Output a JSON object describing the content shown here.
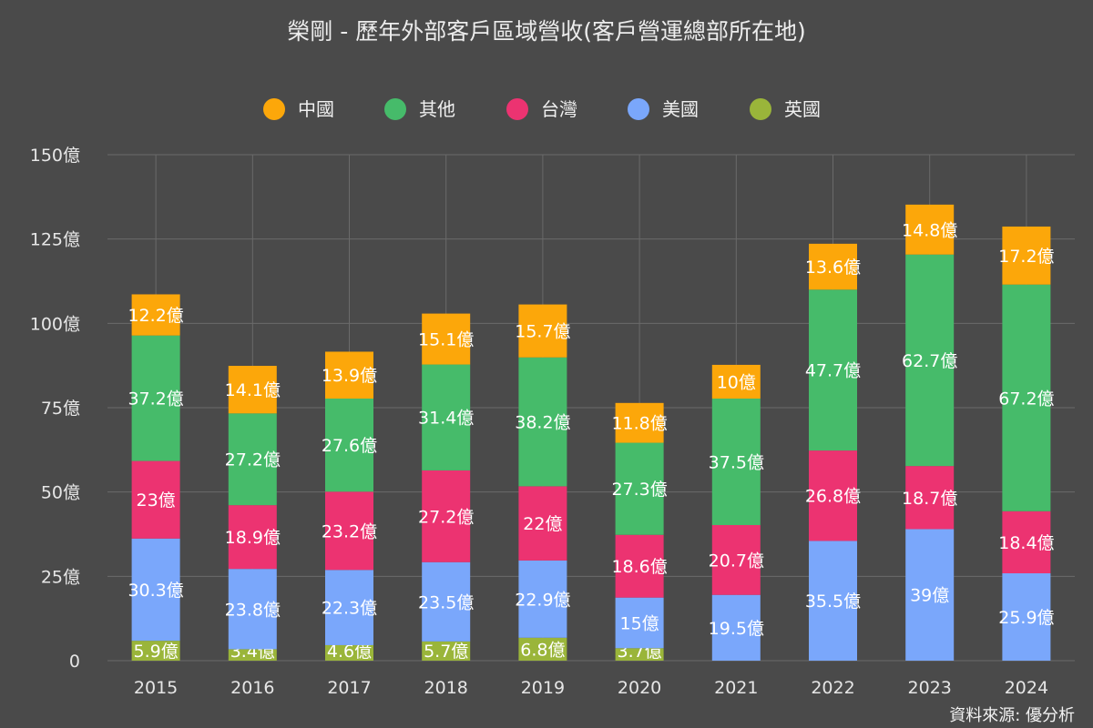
{
  "chart_data": {
    "type": "bar",
    "stacked": true,
    "title": "榮剛 - 歷年外部客戶區域營收(客戶營運總部所在地)",
    "source_note": "資料來源: 優分析",
    "value_suffix": "億",
    "categories": [
      "2015",
      "2016",
      "2017",
      "2018",
      "2019",
      "2020",
      "2021",
      "2022",
      "2023",
      "2024"
    ],
    "series": [
      {
        "name": "英國",
        "color": "#9ab53a",
        "values": [
          5.9,
          3.4,
          4.6,
          5.7,
          6.8,
          3.7,
          null,
          null,
          null,
          null
        ]
      },
      {
        "name": "美國",
        "color": "#7aa7fb",
        "values": [
          30.3,
          23.8,
          22.3,
          23.5,
          22.9,
          15,
          19.5,
          35.5,
          39,
          25.9
        ]
      },
      {
        "name": "台灣",
        "color": "#ec3371",
        "values": [
          23,
          18.9,
          23.2,
          27.2,
          22,
          18.6,
          20.7,
          26.8,
          18.7,
          18.4
        ]
      },
      {
        "name": "其他",
        "color": "#46bb6a",
        "values": [
          37.2,
          27.2,
          27.6,
          31.4,
          38.2,
          27.3,
          37.5,
          47.7,
          62.7,
          67.2
        ]
      },
      {
        "name": "中國",
        "color": "#fca70a",
        "values": [
          12.2,
          14.1,
          13.9,
          15.1,
          15.7,
          11.8,
          10,
          13.6,
          14.8,
          17.2
        ]
      }
    ],
    "legend_order": [
      "中國",
      "其他",
      "台灣",
      "美國",
      "英國"
    ],
    "ylim": [
      0,
      150
    ],
    "yticks": [
      0,
      25,
      50,
      75,
      100,
      125,
      150
    ],
    "ytick_labels": [
      "0",
      "25億",
      "50億",
      "75億",
      "100億",
      "125億",
      "150億"
    ],
    "grid": true,
    "legend_position": "top"
  }
}
